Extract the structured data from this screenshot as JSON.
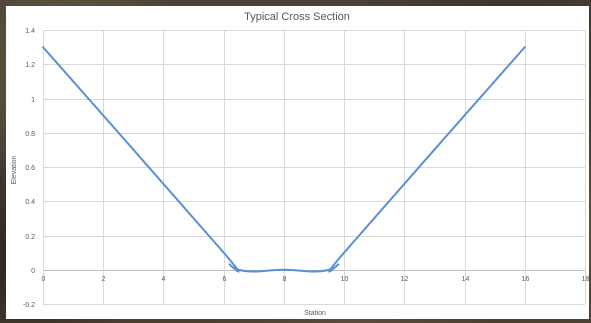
{
  "chart_data": {
    "type": "line",
    "title": "Typical Cross Section",
    "xlabel": "Station",
    "ylabel": "Elevation",
    "xlim": [
      0,
      18
    ],
    "ylim": [
      -0.2,
      1.4
    ],
    "x_ticks": [
      0,
      2,
      4,
      6,
      8,
      10,
      12,
      14,
      16,
      18
    ],
    "y_ticks": [
      -0.2,
      0,
      0.2,
      0.4,
      0.6,
      0.8,
      1,
      1.2,
      1.4
    ],
    "grid": true,
    "legend": "none",
    "series": [
      {
        "color": "#5b8fd4",
        "smooth": true,
        "x": [
          0,
          6,
          6.2,
          6.5,
          7,
          8,
          9,
          9.5,
          9.8,
          10,
          16
        ],
        "y": [
          1.3,
          0.1,
          0.03,
          0.0,
          -0.01,
          0.0,
          -0.01,
          0.0,
          0.03,
          0.1,
          1.3
        ]
      }
    ]
  }
}
